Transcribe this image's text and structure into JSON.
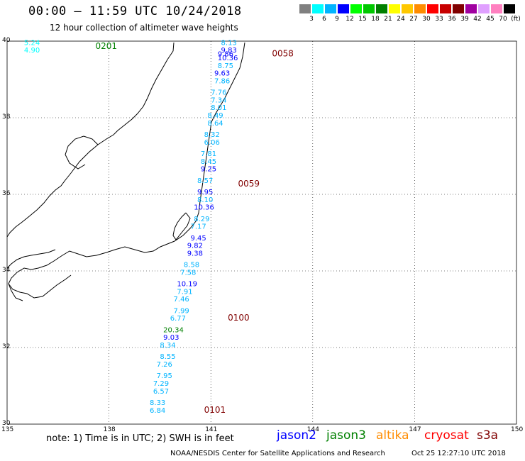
{
  "header": {
    "title": "00:00 – 11:59 UTC 10/24/2018",
    "subtitle": "12 hour collection of altimeter wave heights"
  },
  "scale": {
    "labels": [
      "3",
      "6",
      "9",
      "12",
      "15",
      "18",
      "21",
      "24",
      "27",
      "30",
      "33",
      "36",
      "39",
      "42",
      "45",
      "70",
      "(ft)"
    ],
    "colors": [
      "#808080",
      "#00ffff",
      "#00b4ff",
      "#0000ff",
      "#00ff00",
      "#00c800",
      "#008000",
      "#ffff00",
      "#ffc800",
      "#ff8c00",
      "#ff0000",
      "#c80000",
      "#800000",
      "#a000a0",
      "#e0a0ff",
      "#ff80c0",
      "#000000"
    ]
  },
  "axes": {
    "lon": [
      "135",
      "138",
      "141",
      "144",
      "147",
      "150"
    ],
    "lat": [
      "40",
      "38",
      "36",
      "34",
      "32",
      "30"
    ],
    "lon_values": [
      135,
      138,
      141,
      144,
      147,
      150
    ],
    "lat_values": [
      40,
      38,
      36,
      34,
      32,
      30
    ]
  },
  "labels": {
    "time": [
      {
        "text": "0201",
        "lon": 137.6,
        "lat": 39.8,
        "color": "#008000"
      },
      {
        "text": "0058",
        "lon": 142.8,
        "lat": 39.6,
        "color": "#800000"
      },
      {
        "text": "0059",
        "lon": 141.8,
        "lat": 36.2,
        "color": "#800000"
      },
      {
        "text": "0100",
        "lon": 141.5,
        "lat": 32.7,
        "color": "#800000"
      },
      {
        "text": "0101",
        "lon": 140.8,
        "lat": 30.3,
        "color": "#800000"
      }
    ],
    "swh": [
      {
        "text": "5.24",
        "lon": 135.5,
        "lat": 39.9,
        "color": "#00ffff"
      },
      {
        "text": "4.90",
        "lon": 135.5,
        "lat": 39.7,
        "color": "#00ffff"
      },
      {
        "text": "8.13",
        "lon": 141.3,
        "lat": 39.9,
        "color": "#00b4ff"
      },
      {
        "text": "9.83",
        "lon": 141.3,
        "lat": 39.7,
        "color": "#0000ff"
      },
      {
        "text": "9.86",
        "lon": 141.2,
        "lat": 39.6,
        "color": "#0000ff"
      },
      {
        "text": "10.36",
        "lon": 141.2,
        "lat": 39.5,
        "color": "#0000ff"
      },
      {
        "text": "8.75",
        "lon": 141.2,
        "lat": 39.3,
        "color": "#00b4ff"
      },
      {
        "text": "9.63",
        "lon": 141.1,
        "lat": 39.1,
        "color": "#0000ff"
      },
      {
        "text": "7.86",
        "lon": 141.1,
        "lat": 38.9,
        "color": "#00b4ff"
      },
      {
        "text": "7.76",
        "lon": 141.0,
        "lat": 38.6,
        "color": "#00b4ff"
      },
      {
        "text": "7.34",
        "lon": 141.0,
        "lat": 38.4,
        "color": "#00b4ff"
      },
      {
        "text": "8.01",
        "lon": 141.0,
        "lat": 38.2,
        "color": "#00b4ff"
      },
      {
        "text": "8.49",
        "lon": 140.9,
        "lat": 38.0,
        "color": "#00b4ff"
      },
      {
        "text": "8.64",
        "lon": 140.9,
        "lat": 37.8,
        "color": "#00b4ff"
      },
      {
        "text": "8.32",
        "lon": 140.8,
        "lat": 37.5,
        "color": "#00b4ff"
      },
      {
        "text": "6.06",
        "lon": 140.8,
        "lat": 37.3,
        "color": "#00b4ff"
      },
      {
        "text": "7.81",
        "lon": 140.7,
        "lat": 37.0,
        "color": "#00b4ff"
      },
      {
        "text": "8.45",
        "lon": 140.7,
        "lat": 36.8,
        "color": "#00b4ff"
      },
      {
        "text": "9.25",
        "lon": 140.7,
        "lat": 36.6,
        "color": "#0000ff"
      },
      {
        "text": "8.57",
        "lon": 140.6,
        "lat": 36.3,
        "color": "#00b4ff"
      },
      {
        "text": "9.95",
        "lon": 140.6,
        "lat": 36.0,
        "color": "#0000ff"
      },
      {
        "text": "8.10",
        "lon": 140.6,
        "lat": 35.8,
        "color": "#00b4ff"
      },
      {
        "text": "10.36",
        "lon": 140.5,
        "lat": 35.6,
        "color": "#0000ff"
      },
      {
        "text": "8.29",
        "lon": 140.5,
        "lat": 35.3,
        "color": "#00b4ff"
      },
      {
        "text": "7.17",
        "lon": 140.4,
        "lat": 35.1,
        "color": "#00b4ff"
      },
      {
        "text": "9.45",
        "lon": 140.4,
        "lat": 34.8,
        "color": "#0000ff"
      },
      {
        "text": "9.82",
        "lon": 140.3,
        "lat": 34.6,
        "color": "#0000ff"
      },
      {
        "text": "9.38",
        "lon": 140.3,
        "lat": 34.4,
        "color": "#0000ff"
      },
      {
        "text": "8.58",
        "lon": 140.2,
        "lat": 34.1,
        "color": "#00b4ff"
      },
      {
        "text": "7.58",
        "lon": 140.1,
        "lat": 33.9,
        "color": "#00b4ff"
      },
      {
        "text": "10.19",
        "lon": 140.0,
        "lat": 33.6,
        "color": "#0000ff"
      },
      {
        "text": "7.91",
        "lon": 140.0,
        "lat": 33.4,
        "color": "#00b4ff"
      },
      {
        "text": "7.46",
        "lon": 139.9,
        "lat": 33.2,
        "color": "#00b4ff"
      },
      {
        "text": "7.99",
        "lon": 139.9,
        "lat": 32.9,
        "color": "#00b4ff"
      },
      {
        "text": "6.77",
        "lon": 139.8,
        "lat": 32.7,
        "color": "#00b4ff"
      },
      {
        "text": "20.34",
        "lon": 139.6,
        "lat": 32.4,
        "color": "#008000"
      },
      {
        "text": "9.03",
        "lon": 139.6,
        "lat": 32.2,
        "color": "#0000ff"
      },
      {
        "text": "8.34",
        "lon": 139.5,
        "lat": 32.0,
        "color": "#00b4ff"
      },
      {
        "text": "8.55",
        "lon": 139.5,
        "lat": 31.7,
        "color": "#00b4ff"
      },
      {
        "text": "7.26",
        "lon": 139.4,
        "lat": 31.5,
        "color": "#00b4ff"
      },
      {
        "text": "7.95",
        "lon": 139.4,
        "lat": 31.2,
        "color": "#00b4ff"
      },
      {
        "text": "7.29",
        "lon": 139.3,
        "lat": 31.0,
        "color": "#00b4ff"
      },
      {
        "text": "6.57",
        "lon": 139.3,
        "lat": 30.8,
        "color": "#00b4ff"
      },
      {
        "text": "8.33",
        "lon": 139.2,
        "lat": 30.5,
        "color": "#00b4ff"
      },
      {
        "text": "6.84",
        "lon": 139.2,
        "lat": 30.3,
        "color": "#00b4ff"
      }
    ]
  },
  "note": "note:  1) Time is in UTC;  2) SWH is in feet",
  "satellites": [
    {
      "name": "jason2",
      "color": "#0000ff"
    },
    {
      "name": "jason3",
      "color": "#008000"
    },
    {
      "name": "altika",
      "color": "#ff8c00"
    },
    {
      "name": "cryosat",
      "color": "#ff0000"
    },
    {
      "name": "s3a",
      "color": "#800000"
    }
  ],
  "footer": {
    "credit": "NOAA/NESDIS Center for Satellite Applications and Research",
    "timestamp": "Oct 25 12:27:10 UTC 2018"
  }
}
